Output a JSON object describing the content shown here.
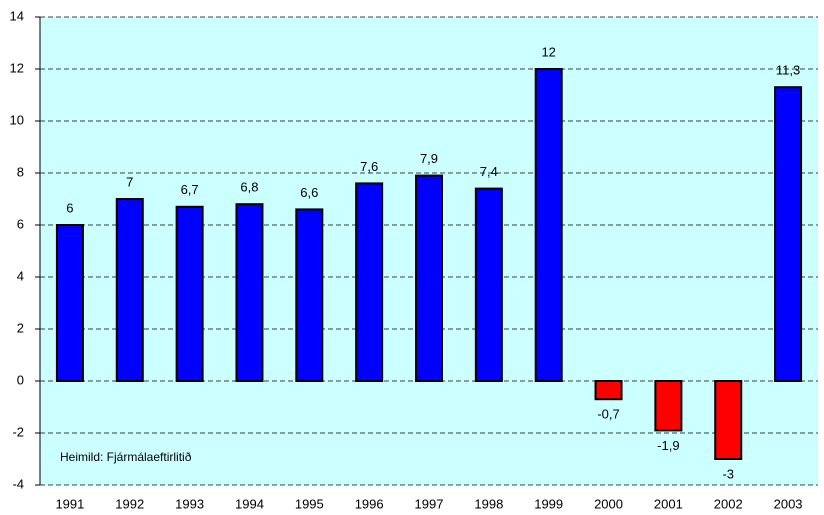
{
  "chart_data": {
    "type": "bar",
    "categories": [
      "1991",
      "1992",
      "1993",
      "1994",
      "1995",
      "1996",
      "1997",
      "1998",
      "1999",
      "2000",
      "2001",
      "2002",
      "2003"
    ],
    "values": [
      6,
      7,
      6.7,
      6.8,
      6.6,
      7.6,
      7.9,
      7.4,
      12,
      -0.7,
      -1.9,
      -3,
      11.3
    ],
    "value_labels": [
      "6",
      "7",
      "6,7",
      "6,8",
      "6,6",
      "7,6",
      "7,9",
      "7,4",
      "12",
      "-0,7",
      "-1,9",
      "-3",
      "11,3"
    ],
    "colors": [
      "#0000ff",
      "#0000ff",
      "#0000ff",
      "#0000ff",
      "#0000ff",
      "#0000ff",
      "#0000ff",
      "#0000ff",
      "#0000ff",
      "#ff0000",
      "#ff0000",
      "#ff0000",
      "#0000ff"
    ],
    "annotation": "Heimild: Fjármálaeftirlitið",
    "ylim": [
      -4,
      14
    ],
    "yticks": [
      -4,
      -2,
      0,
      2,
      4,
      6,
      8,
      10,
      12,
      14
    ],
    "grid": true,
    "plot_background": "#ccffff"
  }
}
